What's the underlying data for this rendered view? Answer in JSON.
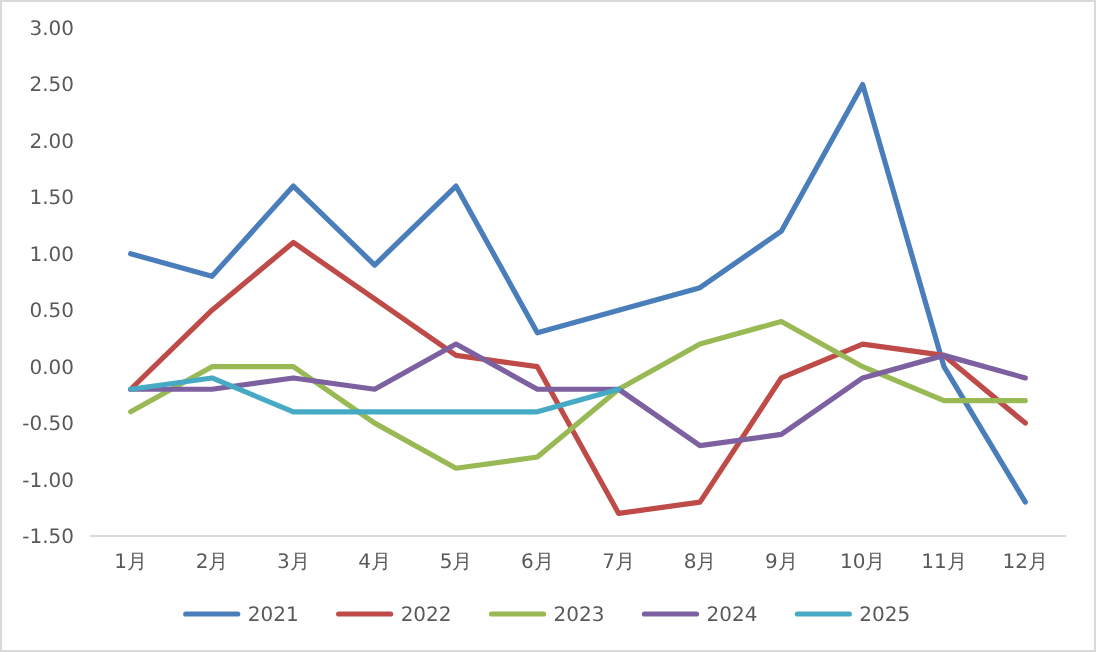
{
  "chart_data": {
    "type": "line",
    "categories": [
      "1月",
      "2月",
      "3月",
      "4月",
      "5月",
      "6月",
      "7月",
      "8月",
      "9月",
      "10月",
      "11月",
      "12月"
    ],
    "series": [
      {
        "name": "2021",
        "color": "#4a7ebb",
        "values": [
          1.0,
          0.8,
          1.6,
          0.9,
          1.6,
          0.3,
          0.5,
          0.7,
          1.2,
          2.5,
          0.0,
          -1.2
        ]
      },
      {
        "name": "2022",
        "color": "#be4b48",
        "values": [
          -0.2,
          0.5,
          1.1,
          0.6,
          0.1,
          0.0,
          -1.3,
          -1.2,
          -0.1,
          0.2,
          0.1,
          -0.5
        ]
      },
      {
        "name": "2023",
        "color": "#98b954",
        "values": [
          -0.4,
          0.0,
          0.0,
          -0.5,
          -0.9,
          -0.8,
          -0.2,
          0.2,
          0.4,
          0.0,
          -0.3,
          -0.3
        ]
      },
      {
        "name": "2024",
        "color": "#7d60a0",
        "values": [
          -0.2,
          -0.2,
          -0.1,
          -0.2,
          0.2,
          -0.2,
          -0.2,
          -0.7,
          -0.6,
          -0.1,
          0.1,
          -0.1
        ]
      },
      {
        "name": "2025",
        "color": "#46aac5",
        "values": [
          -0.2,
          -0.1,
          -0.4,
          -0.4,
          -0.4,
          -0.4,
          -0.2,
          null,
          null,
          null,
          null,
          null
        ]
      }
    ],
    "ylim": [
      -1.5,
      3.0
    ],
    "yticks": [
      {
        "value": -1.5,
        "label": "-1.50"
      },
      {
        "value": -1.0,
        "label": "-1.00"
      },
      {
        "value": -0.5,
        "label": "-0.50"
      },
      {
        "value": 0,
        "label": "0.00"
      },
      {
        "value": 0.5,
        "label": "0.50"
      },
      {
        "value": 1.0,
        "label": "1.00"
      },
      {
        "value": 1.5,
        "label": "1.50"
      },
      {
        "value": 2.0,
        "label": "2.00"
      },
      {
        "value": 2.5,
        "label": "2.50"
      },
      {
        "value": 3.0,
        "label": "3.00"
      }
    ],
    "grid": false,
    "legend": "bottom",
    "marker": "none",
    "line_style": "solid"
  }
}
